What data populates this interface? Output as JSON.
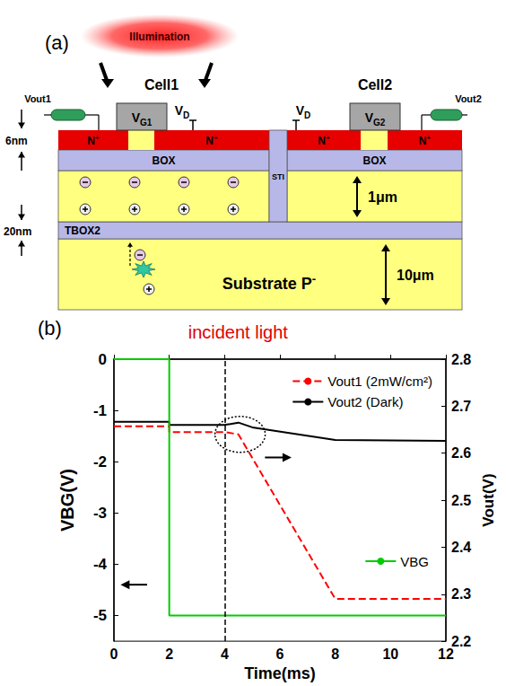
{
  "panel_a": {
    "label": "(a)",
    "illumination": "Illumination",
    "cells": [
      {
        "name": "Cell1",
        "gate": {
          "main": "V",
          "sub": "G1"
        },
        "drain": {
          "main": "V",
          "sub": "D"
        },
        "output": "Vout1"
      },
      {
        "name": "Cell2",
        "gate": {
          "main": "V",
          "sub": "G2"
        },
        "drain": {
          "main": "V",
          "sub": "D"
        },
        "output": "Vout2"
      }
    ],
    "layers": {
      "n_plus": {
        "main": "N",
        "sup": "+"
      },
      "box": "BOX",
      "sti": "STI",
      "tbox2": "TBOX2",
      "substrate": {
        "main": "Substrate P",
        "sup": "-"
      }
    },
    "dimensions": {
      "top_si": "6nm",
      "tbox2": "20nm",
      "body": "1μm",
      "substrate": "10μm"
    }
  },
  "chart_data": {
    "type": "line",
    "label": "(b)",
    "annotation": {
      "text": "incident light",
      "x": 4
    },
    "x_label": "Time(ms)",
    "y_label": "VBG(V)",
    "y2_label": "Vout(V)",
    "xlim": [
      0,
      12
    ],
    "xticks": [
      0,
      2,
      4,
      6,
      8,
      10,
      12
    ],
    "ylim": [
      -5.5,
      0
    ],
    "yticks": [
      0,
      -1,
      -2,
      -3,
      -4,
      -5
    ],
    "y2lim": [
      2.2,
      2.8
    ],
    "y2ticks": [
      2.2,
      2.3,
      2.4,
      2.5,
      2.6,
      2.7,
      2.8
    ],
    "grid": false,
    "legend": "upper right",
    "series": [
      {
        "name": "Vout1 (2mW/cm²)",
        "color": "#ff0000",
        "line_style": "dashed",
        "marker": "none",
        "axis": "y2",
        "x": [
          0,
          2,
          2,
          4,
          4.5,
          8,
          12
        ],
        "values": [
          2.657,
          2.657,
          2.645,
          2.645,
          2.64,
          2.29,
          2.29
        ]
      },
      {
        "name": "Vout2 (Dark)",
        "color": "#000000",
        "line_style": "solid",
        "marker": "none",
        "axis": "y2",
        "x": [
          0,
          2,
          2,
          4,
          4.5,
          5,
          8,
          12
        ],
        "values": [
          2.667,
          2.667,
          2.66,
          2.66,
          2.665,
          2.655,
          2.628,
          2.626
        ]
      },
      {
        "name": "VBG",
        "color": "#00cc00",
        "line_style": "solid",
        "marker": "none",
        "axis": "y",
        "x": [
          0,
          2,
          2,
          12
        ],
        "values": [
          0,
          0,
          -5,
          -5
        ]
      }
    ]
  }
}
